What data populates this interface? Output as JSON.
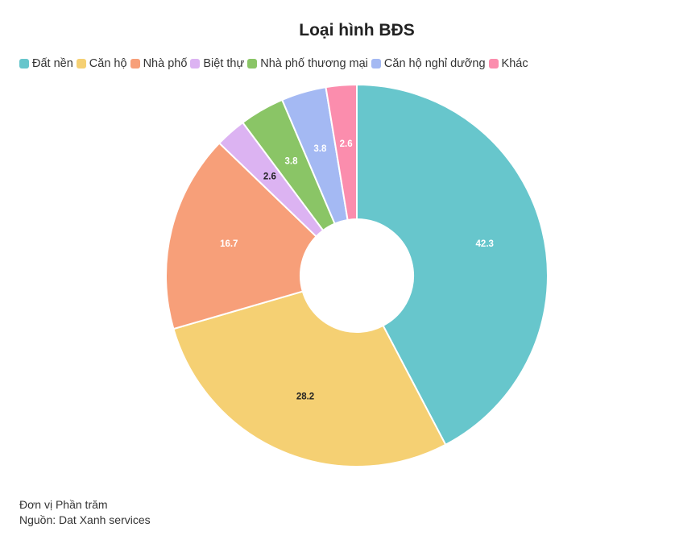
{
  "chart_data": {
    "type": "pie",
    "title": "Loại hình BĐS",
    "categories": [
      "Đất nền",
      "Căn hộ",
      "Nhà phố",
      "Biệt thự",
      "Nhà phố thương mại",
      "Căn hộ nghỉ dưỡng",
      "Khác"
    ],
    "values": [
      42.3,
      28.2,
      16.7,
      2.6,
      3.8,
      3.8,
      2.6
    ],
    "colors": [
      "#67c6cc",
      "#f5d073",
      "#f79f79",
      "#dcb3f2",
      "#8ac566",
      "#a4b9f3",
      "#fb8dad"
    ],
    "label_colors": [
      "#ffffff",
      "#222222",
      "#ffffff",
      "#222222",
      "#ffffff",
      "#ffffff",
      "#ffffff"
    ],
    "donut": true,
    "legend_position": "top"
  },
  "footer": {
    "unit": "Đơn vị Phần trăm",
    "source": "Nguồn: Dat Xanh services"
  }
}
